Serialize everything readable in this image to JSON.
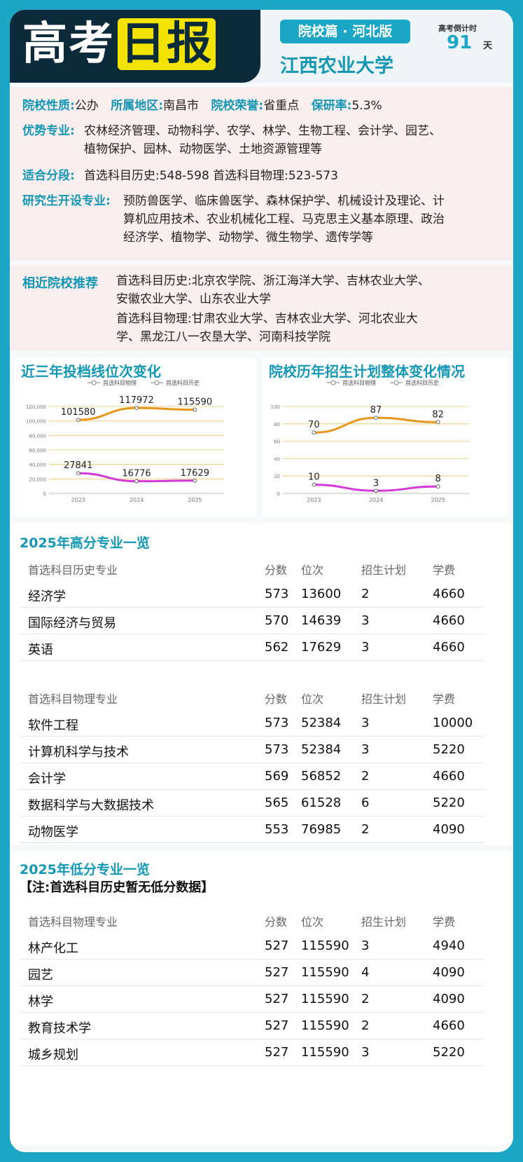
{
  "header": {
    "logo_white": "高考",
    "logo_yellow": "日报",
    "edition": "院校篇 · 河北版",
    "school": "江西农业大学",
    "countdown_label": "高考倒计时",
    "countdown_days": "91",
    "countdown_unit": "天"
  },
  "info": {
    "nature_label": "院校性质:",
    "nature_value": "公办",
    "region_label": "所属地区:",
    "region_value": "南昌市",
    "honor_label": "院校荣誉:",
    "honor_value": "省重点",
    "postgrad_label": "保研率:",
    "postgrad_value": "5.3%",
    "majors_label": "优势专业:",
    "majors_line1": "农林经济管理、动物科学、农学、林学、生物工程、会计学、园艺、",
    "majors_line2": "植物保护、园林、动物医学、土地资源管理等",
    "score_label": "适合分段:",
    "score_value": "首选科目历史:548-598   首选科目物理:523-573",
    "grad_label": "研究生开设专业:",
    "grad_line1": "预防兽医学、临床兽医学、森林保护学、机械设计及理论、计",
    "grad_line2": "算机应用技术、农业机械化工程、马克思主义基本原理、政治",
    "grad_line3": "经济学、植物学、动物学、微生物学、遗传学等"
  },
  "similar": {
    "label": "相近院校推荐",
    "line1": "首选科目历史:北京农学院、浙江海洋大学、吉林农业大学、",
    "line2": "安徽农业大学、山东农业大学",
    "line3": "首选科目物理:甘肃农业大学、吉林农业大学、河北农业大",
    "line4": "学、黑龙江八一农垦大学、河南科技学院"
  },
  "chart_data": [
    {
      "type": "line",
      "title": "近三年投档线位次变化",
      "x": [
        "2023",
        "2024",
        "2025"
      ],
      "ylim": [
        0,
        120000
      ],
      "yticks": [
        "0",
        "20,000",
        "40,000",
        "60,000",
        "80,000",
        "100,000",
        "120,000"
      ],
      "legend": [
        "首选科目物理",
        "首选科目历史"
      ],
      "series": [
        {
          "name": "首选科目物理",
          "values": [
            101580,
            117972,
            115590
          ],
          "color": "#e8961e"
        },
        {
          "name": "首选科目历史",
          "values": [
            27841,
            16776,
            17629
          ],
          "color": "#d23ad8"
        }
      ]
    },
    {
      "type": "line",
      "title": "院校历年招生计划整体变化情况",
      "x": [
        "2023",
        "2024",
        "2025"
      ],
      "ylim": [
        0,
        100
      ],
      "yticks": [
        "0",
        "20",
        "40",
        "60",
        "80",
        "100"
      ],
      "legend": [
        "首选科目物理",
        "首选科目历史"
      ],
      "series": [
        {
          "name": "首选科目物理",
          "values": [
            70,
            87,
            82
          ],
          "color": "#e8961e"
        },
        {
          "name": "首选科目历史",
          "values": [
            10,
            3,
            8
          ],
          "color": "#d23ad8"
        }
      ]
    }
  ],
  "high": {
    "title": "2025年高分专业一览",
    "history_header": [
      "首选科目历史专业",
      "分数",
      "位次",
      "招生计划",
      "学费"
    ],
    "history_rows": [
      [
        "经济学",
        "573",
        "13600",
        "2",
        "4660"
      ],
      [
        "国际经济与贸易",
        "570",
        "14639",
        "3",
        "4660"
      ],
      [
        "英语",
        "562",
        "17629",
        "3",
        "4660"
      ]
    ],
    "physics_header": [
      "首选科目物理专业",
      "分数",
      "位次",
      "招生计划",
      "学费"
    ],
    "physics_rows": [
      [
        "软件工程",
        "573",
        "52384",
        "3",
        "10000"
      ],
      [
        "计算机科学与技术",
        "573",
        "52384",
        "3",
        "5220"
      ],
      [
        "会计学",
        "569",
        "56852",
        "2",
        "4660"
      ],
      [
        "数据科学与大数据技术",
        "565",
        "61528",
        "6",
        "5220"
      ],
      [
        "动物医学",
        "553",
        "76985",
        "2",
        "4090"
      ]
    ]
  },
  "low": {
    "title": "2025年低分专业一览",
    "note": "【注:首选科目历史暂无低分数据】",
    "physics_header": [
      "首选科目物理专业",
      "分数",
      "位次",
      "招生计划",
      "学费"
    ],
    "physics_rows": [
      [
        "林产化工",
        "527",
        "115590",
        "3",
        "4940"
      ],
      [
        "园艺",
        "527",
        "115590",
        "4",
        "4090"
      ],
      [
        "林学",
        "527",
        "115590",
        "2",
        "4090"
      ],
      [
        "教育技术学",
        "527",
        "115590",
        "2",
        "4660"
      ],
      [
        "城乡规划",
        "527",
        "115590",
        "3",
        "5220"
      ]
    ]
  }
}
